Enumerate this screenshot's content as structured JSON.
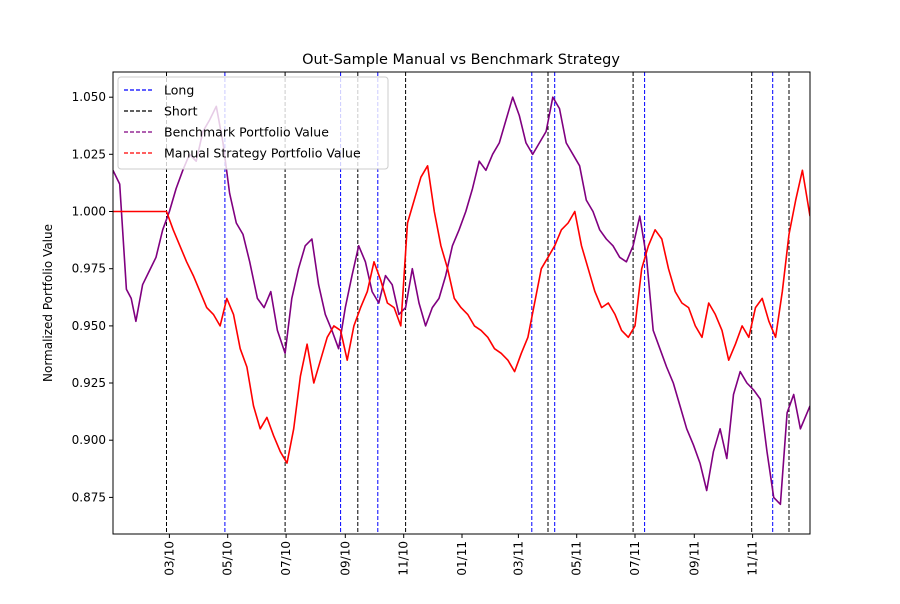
{
  "chart_data": {
    "type": "line",
    "title": "Out-Sample Manual vs Benchmark Strategy",
    "xlabel": "",
    "ylabel": "Normalized Portfolio Value",
    "xlim": [
      "2010-01-01",
      "2011-12-31"
    ],
    "ylim": [
      0.859,
      1.061
    ],
    "yticks": [
      0.875,
      0.9,
      0.925,
      0.95,
      0.975,
      1.0,
      1.025,
      1.05
    ],
    "ytick_labels": [
      "0.875",
      "0.900",
      "0.925",
      "0.950",
      "0.975",
      "1.000",
      "1.025",
      "1.050"
    ],
    "xticks": [
      {
        "date": "2010-03-01",
        "label": "03/10"
      },
      {
        "date": "2010-05-01",
        "label": "05/10"
      },
      {
        "date": "2010-07-01",
        "label": "07/10"
      },
      {
        "date": "2010-09-01",
        "label": "09/10"
      },
      {
        "date": "2010-11-01",
        "label": "11/10"
      },
      {
        "date": "2011-01-01",
        "label": "01/11"
      },
      {
        "date": "2011-03-01",
        "label": "03/11"
      },
      {
        "date": "2011-05-01",
        "label": "05/11"
      },
      {
        "date": "2011-07-01",
        "label": "07/11"
      },
      {
        "date": "2011-09-01",
        "label": "09/11"
      },
      {
        "date": "2011-11-01",
        "label": "11/11"
      }
    ],
    "grid": false,
    "legend_position": "top-left",
    "legend": [
      {
        "label": "Long",
        "color": "#0000ff",
        "style": "dashed"
      },
      {
        "label": "Short",
        "color": "#000000",
        "style": "dashed"
      },
      {
        "label": "Benchmark Portfolio Value",
        "color": "#800080",
        "style": "dashed"
      },
      {
        "label": "Manual Strategy Portfolio Value",
        "color": "#ff0000",
        "style": "dashed"
      }
    ],
    "vlines": {
      "long": [
        "2010-04-28",
        "2010-08-27",
        "2010-10-05",
        "2011-03-15",
        "2011-04-08",
        "2011-07-11",
        "2011-11-22"
      ],
      "short": [
        "2010-02-26",
        "2010-06-30",
        "2010-09-14",
        "2010-11-03",
        "2011-04-01",
        "2011-06-29",
        "2011-10-31",
        "2011-12-09"
      ]
    },
    "series": [
      {
        "name": "Benchmark Portfolio Value",
        "color": "#800080",
        "x": [
          "2010-01-01",
          "2010-01-08",
          "2010-01-15",
          "2010-01-20",
          "2010-01-25",
          "2010-02-01",
          "2010-02-08",
          "2010-02-15",
          "2010-02-22",
          "2010-03-01",
          "2010-03-08",
          "2010-03-15",
          "2010-03-22",
          "2010-03-29",
          "2010-04-05",
          "2010-04-12",
          "2010-04-19",
          "2010-04-26",
          "2010-05-03",
          "2010-05-10",
          "2010-05-17",
          "2010-05-24",
          "2010-06-01",
          "2010-06-08",
          "2010-06-15",
          "2010-06-22",
          "2010-06-30",
          "2010-07-07",
          "2010-07-14",
          "2010-07-21",
          "2010-07-28",
          "2010-08-04",
          "2010-08-11",
          "2010-08-18",
          "2010-08-25",
          "2010-09-01",
          "2010-09-08",
          "2010-09-15",
          "2010-09-22",
          "2010-09-29",
          "2010-10-06",
          "2010-10-13",
          "2010-10-20",
          "2010-10-27",
          "2010-11-03",
          "2010-11-10",
          "2010-11-17",
          "2010-11-24",
          "2010-12-01",
          "2010-12-08",
          "2010-12-15",
          "2010-12-22",
          "2010-12-29",
          "2011-01-05",
          "2011-01-12",
          "2011-01-19",
          "2011-01-26",
          "2011-02-02",
          "2011-02-09",
          "2011-02-16",
          "2011-02-23",
          "2011-03-02",
          "2011-03-09",
          "2011-03-16",
          "2011-03-23",
          "2011-03-30",
          "2011-04-06",
          "2011-04-13",
          "2011-04-20",
          "2011-04-27",
          "2011-05-04",
          "2011-05-11",
          "2011-05-18",
          "2011-05-25",
          "2011-06-01",
          "2011-06-08",
          "2011-06-15",
          "2011-06-22",
          "2011-06-29",
          "2011-07-06",
          "2011-07-13",
          "2011-07-20",
          "2011-07-27",
          "2011-08-03",
          "2011-08-10",
          "2011-08-17",
          "2011-08-24",
          "2011-08-31",
          "2011-09-07",
          "2011-09-14",
          "2011-09-21",
          "2011-09-28",
          "2011-10-05",
          "2011-10-12",
          "2011-10-19",
          "2011-10-26",
          "2011-11-02",
          "2011-11-09",
          "2011-11-16",
          "2011-11-23",
          "2011-11-30",
          "2011-12-07",
          "2011-12-14",
          "2011-12-21",
          "2011-12-31"
        ],
        "y": [
          1.018,
          1.012,
          0.966,
          0.962,
          0.952,
          0.968,
          0.974,
          0.98,
          0.992,
          1.0,
          1.01,
          1.018,
          1.025,
          1.022,
          1.035,
          1.04,
          1.046,
          1.03,
          1.008,
          0.995,
          0.99,
          0.978,
          0.962,
          0.958,
          0.965,
          0.948,
          0.938,
          0.962,
          0.975,
          0.985,
          0.988,
          0.968,
          0.955,
          0.948,
          0.94,
          0.958,
          0.972,
          0.985,
          0.978,
          0.965,
          0.96,
          0.972,
          0.968,
          0.955,
          0.958,
          0.975,
          0.96,
          0.95,
          0.958,
          0.962,
          0.972,
          0.985,
          0.992,
          1.0,
          1.01,
          1.022,
          1.018,
          1.025,
          1.03,
          1.04,
          1.05,
          1.042,
          1.03,
          1.025,
          1.03,
          1.035,
          1.05,
          1.045,
          1.03,
          1.025,
          1.02,
          1.005,
          1.0,
          0.992,
          0.988,
          0.985,
          0.98,
          0.978,
          0.985,
          0.998,
          0.98,
          0.948,
          0.94,
          0.932,
          0.925,
          0.915,
          0.905,
          0.898,
          0.89,
          0.878,
          0.895,
          0.905,
          0.892,
          0.92,
          0.93,
          0.925,
          0.922,
          0.918,
          0.895,
          0.875,
          0.872,
          0.912,
          0.92,
          0.905,
          0.915
        ]
      },
      {
        "name": "Manual Strategy Portfolio Value",
        "color": "#ff0000",
        "x": [
          "2010-01-01",
          "2010-01-15",
          "2010-02-01",
          "2010-02-15",
          "2010-02-26",
          "2010-03-05",
          "2010-03-12",
          "2010-03-19",
          "2010-03-26",
          "2010-04-02",
          "2010-04-09",
          "2010-04-16",
          "2010-04-23",
          "2010-04-30",
          "2010-05-07",
          "2010-05-14",
          "2010-05-21",
          "2010-05-28",
          "2010-06-04",
          "2010-06-11",
          "2010-06-18",
          "2010-06-25",
          "2010-07-02",
          "2010-07-09",
          "2010-07-16",
          "2010-07-23",
          "2010-07-30",
          "2010-08-06",
          "2010-08-13",
          "2010-08-20",
          "2010-08-27",
          "2010-09-03",
          "2010-09-10",
          "2010-09-17",
          "2010-09-24",
          "2010-10-01",
          "2010-10-08",
          "2010-10-15",
          "2010-10-22",
          "2010-10-29",
          "2010-11-05",
          "2010-11-12",
          "2010-11-19",
          "2010-11-26",
          "2010-12-03",
          "2010-12-10",
          "2010-12-17",
          "2010-12-24",
          "2010-12-31",
          "2011-01-07",
          "2011-01-14",
          "2011-01-21",
          "2011-01-28",
          "2011-02-04",
          "2011-02-11",
          "2011-02-18",
          "2011-02-25",
          "2011-03-04",
          "2011-03-11",
          "2011-03-18",
          "2011-03-25",
          "2011-04-01",
          "2011-04-08",
          "2011-04-15",
          "2011-04-22",
          "2011-04-29",
          "2011-05-06",
          "2011-05-13",
          "2011-05-20",
          "2011-05-27",
          "2011-06-03",
          "2011-06-10",
          "2011-06-17",
          "2011-06-24",
          "2011-07-01",
          "2011-07-08",
          "2011-07-15",
          "2011-07-22",
          "2011-07-29",
          "2011-08-05",
          "2011-08-12",
          "2011-08-19",
          "2011-08-26",
          "2011-09-02",
          "2011-09-09",
          "2011-09-16",
          "2011-09-23",
          "2011-09-30",
          "2011-10-07",
          "2011-10-14",
          "2011-10-21",
          "2011-10-28",
          "2011-11-04",
          "2011-11-11",
          "2011-11-18",
          "2011-11-25",
          "2011-12-02",
          "2011-12-09",
          "2011-12-16",
          "2011-12-23",
          "2011-12-31"
        ],
        "y": [
          1.0,
          1.0,
          1.0,
          1.0,
          1.0,
          0.992,
          0.985,
          0.978,
          0.972,
          0.965,
          0.958,
          0.955,
          0.95,
          0.962,
          0.955,
          0.94,
          0.932,
          0.915,
          0.905,
          0.91,
          0.902,
          0.895,
          0.89,
          0.905,
          0.928,
          0.942,
          0.925,
          0.935,
          0.945,
          0.95,
          0.948,
          0.935,
          0.95,
          0.958,
          0.965,
          0.978,
          0.97,
          0.96,
          0.958,
          0.95,
          0.995,
          1.005,
          1.015,
          1.02,
          1.0,
          0.985,
          0.975,
          0.962,
          0.958,
          0.955,
          0.95,
          0.948,
          0.945,
          0.94,
          0.938,
          0.935,
          0.93,
          0.938,
          0.945,
          0.96,
          0.975,
          0.98,
          0.985,
          0.992,
          0.995,
          1.0,
          0.985,
          0.975,
          0.965,
          0.958,
          0.96,
          0.955,
          0.948,
          0.945,
          0.95,
          0.975,
          0.985,
          0.992,
          0.988,
          0.975,
          0.965,
          0.96,
          0.958,
          0.95,
          0.945,
          0.96,
          0.955,
          0.948,
          0.935,
          0.942,
          0.95,
          0.945,
          0.958,
          0.962,
          0.952,
          0.945,
          0.965,
          0.99,
          1.005,
          1.018,
          0.998
        ]
      }
    ]
  }
}
